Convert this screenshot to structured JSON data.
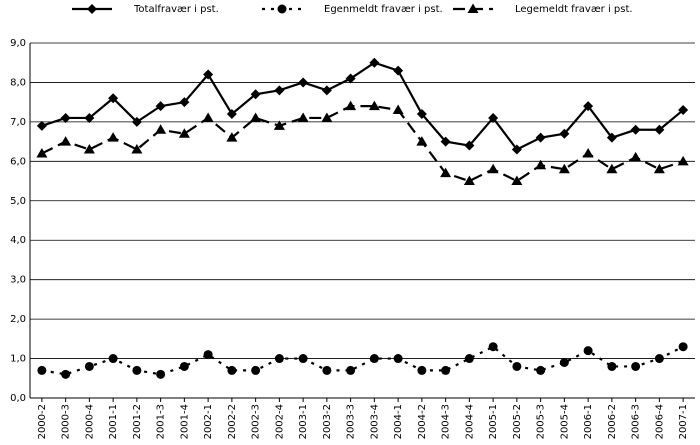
{
  "chart_data": {
    "type": "line",
    "categories": [
      "2000-2",
      "2000-3",
      "2000-4",
      "2001-1",
      "2001-2",
      "2001-3",
      "2001-4",
      "2002-1",
      "2002-2",
      "2002-3",
      "2002-4",
      "2003-1",
      "2003-2",
      "2003-3",
      "2003-4",
      "2004-1",
      "2004-2",
      "2004-3",
      "2004-4",
      "2005-1",
      "2005-2",
      "2005-3",
      "2005-4",
      "2006-1",
      "2006-2",
      "2006-3",
      "2006-4",
      "2007-1"
    ],
    "series": [
      {
        "name": "Totalfravær i pst.",
        "color": "#000000",
        "marker": "diamond",
        "dash": "solid",
        "values": [
          6.9,
          7.1,
          7.1,
          7.6,
          7.0,
          7.4,
          7.5,
          8.2,
          7.2,
          7.7,
          7.8,
          8.0,
          7.8,
          8.1,
          8.5,
          8.3,
          7.2,
          6.5,
          6.4,
          7.1,
          6.3,
          6.6,
          6.7,
          7.4,
          6.6,
          6.8,
          6.8,
          7.3
        ]
      },
      {
        "name": "Egenmeldt fravær i pst.",
        "color": "#000000",
        "marker": "circle",
        "dash": "dotted",
        "values": [
          0.7,
          0.6,
          0.8,
          1.0,
          0.7,
          0.6,
          0.8,
          1.1,
          0.7,
          0.7,
          1.0,
          1.0,
          0.7,
          0.7,
          1.0,
          1.0,
          0.7,
          0.7,
          1.0,
          1.3,
          0.8,
          0.7,
          0.9,
          1.2,
          0.8,
          0.8,
          1.0,
          1.3
        ]
      },
      {
        "name": "Legemeldt fravær i pst.",
        "color": "#000000",
        "marker": "triangle",
        "dash": "dashed",
        "values": [
          6.2,
          6.5,
          6.3,
          6.6,
          6.3,
          6.8,
          6.7,
          7.1,
          6.6,
          7.1,
          6.9,
          7.1,
          7.1,
          7.4,
          7.4,
          7.3,
          6.5,
          5.7,
          5.5,
          5.8,
          5.5,
          5.9,
          5.8,
          6.2,
          5.8,
          6.1,
          5.8,
          6.0
        ]
      }
    ],
    "ylim": [
      0,
      9
    ],
    "yticks": [
      {
        "value": 0,
        "label": "0,0"
      },
      {
        "value": 1,
        "label": "1,0"
      },
      {
        "value": 2,
        "label": "2,0"
      },
      {
        "value": 3,
        "label": "3,0"
      },
      {
        "value": 4,
        "label": "4,0"
      },
      {
        "value": 5,
        "label": "5,0"
      },
      {
        "value": 6,
        "label": "6,0"
      },
      {
        "value": 7,
        "label": "7,0"
      },
      {
        "value": 8,
        "label": "8,0"
      },
      {
        "value": 9,
        "label": "9,0"
      }
    ],
    "grid": true,
    "legend": "top"
  }
}
